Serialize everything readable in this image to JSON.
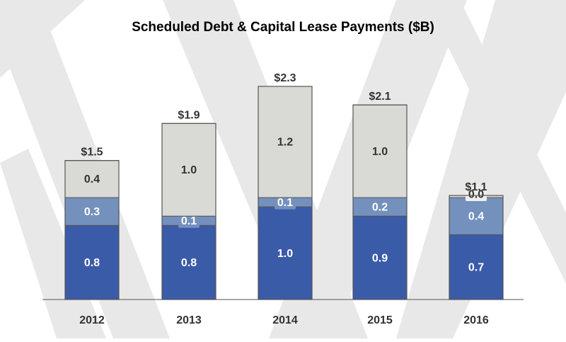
{
  "chart_data": {
    "type": "bar",
    "stacked": true,
    "title": "Scheduled Debt & Capital Lease Payments ($B)",
    "xlabel": "",
    "ylabel": "",
    "categories": [
      "2012",
      "2013",
      "2014",
      "2015",
      "2016"
    ],
    "series": [
      {
        "values": [
          0.8,
          0.8,
          1.0,
          0.9,
          0.7
        ],
        "labels": [
          "0.8",
          "0.8",
          "1.0",
          "0.9",
          "0.7"
        ],
        "color": "#3a5ba8",
        "label_color": "#ffffff"
      },
      {
        "values": [
          0.3,
          0.1,
          0.1,
          0.2,
          0.4
        ],
        "labels": [
          "0.3",
          "0.1",
          "0.1",
          "0.2",
          "0.4"
        ],
        "color": "#7490bd",
        "label_color": "#ffffff"
      },
      {
        "values": [
          0.4,
          1.0,
          1.2,
          1.0,
          0.0
        ],
        "labels": [
          "0.4",
          "1.0",
          "1.2",
          "1.0",
          "0.0"
        ],
        "color": "#d9d9d6",
        "label_color": "#333333"
      }
    ],
    "totals": [
      "$1.5",
      "$1.9",
      "$2.3",
      "$2.1",
      "$1.1"
    ],
    "ylim": [
      0,
      2.3
    ],
    "grid": false,
    "legend": "none",
    "colors": {
      "background_pattern": "#e8e8e8",
      "bar_border": "#555555",
      "text": "#333333"
    }
  }
}
